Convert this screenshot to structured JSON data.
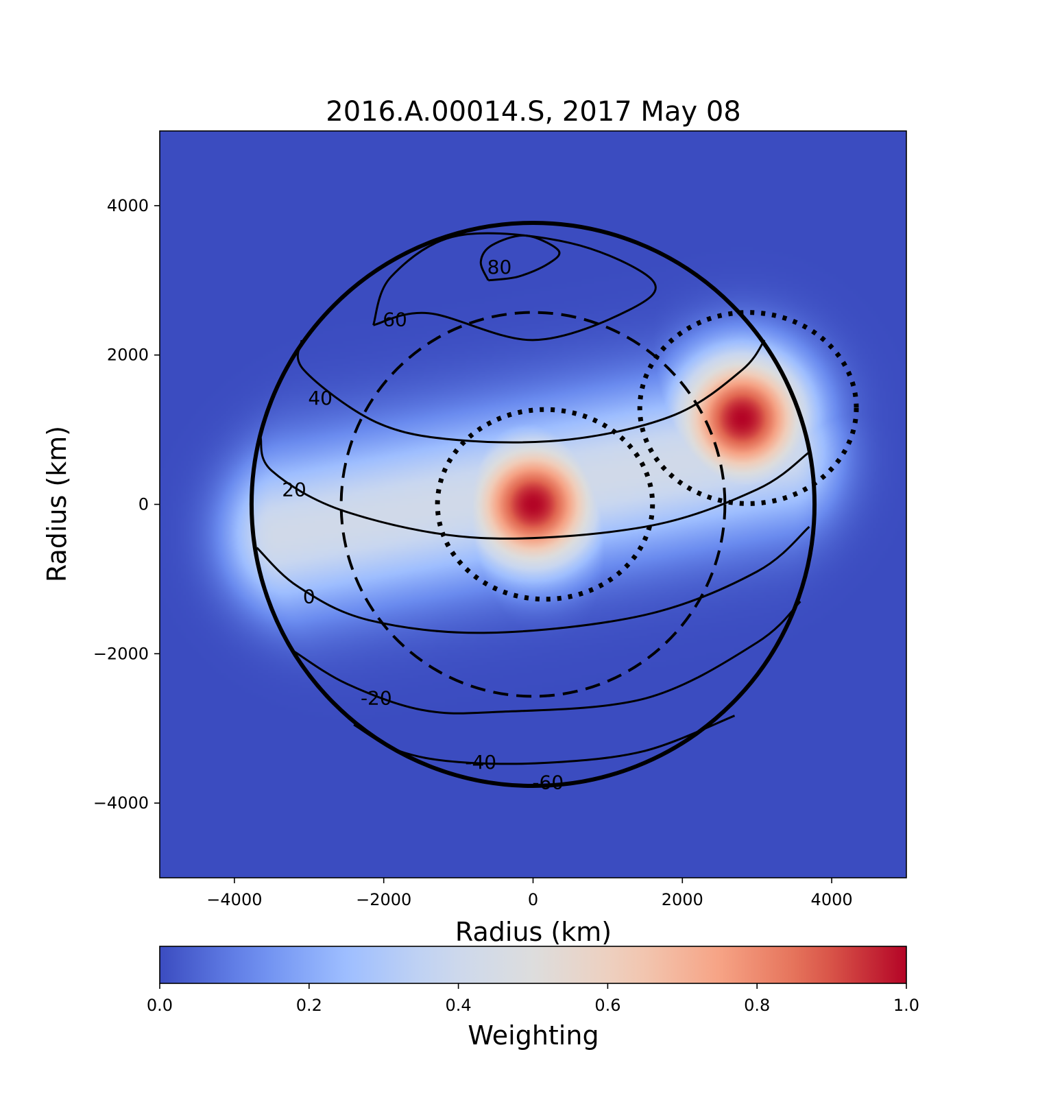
{
  "chart_data": {
    "type": "heatmap",
    "title": "2016.A.00014.S, 2017 May 08",
    "xlabel": "Radius (km)",
    "ylabel": "Radius (km)",
    "xlim": [
      -5000,
      5000
    ],
    "ylim": [
      -5000,
      5000
    ],
    "x_ticks": [
      -4000,
      -2000,
      0,
      2000,
      4000
    ],
    "y_ticks": [
      -4000,
      -2000,
      0,
      2000,
      4000
    ],
    "x_tick_labels": [
      "−4000",
      "−2000",
      "0",
      "2000",
      "4000"
    ],
    "y_tick_labels": [
      "−4000",
      "−2000",
      "0",
      "2000",
      "4000"
    ],
    "colormap": "coolwarm",
    "colormap_colors": [
      "#3b4cc0",
      "#6a8bef",
      "#9ebeff",
      "#c9d7f0",
      "#dddddd",
      "#f1cdb9",
      "#f6a385",
      "#e16751",
      "#b40426"
    ],
    "colorbar": {
      "label": "Weighting",
      "range": [
        0.0,
        1.0
      ],
      "ticks": [
        0.0,
        0.2,
        0.4,
        0.6,
        0.8,
        1.0
      ],
      "tick_labels": [
        "0.0",
        "0.2",
        "0.4",
        "0.6",
        "0.8",
        "1.0"
      ]
    },
    "beams": [
      {
        "center": [
          0,
          0
        ],
        "peak_weight": 1.0
      },
      {
        "center": [
          2800,
          1150
        ],
        "peak_weight": 1.0
      }
    ],
    "planet_limb": {
      "center": [
        0,
        0
      ],
      "radius": 3770
    },
    "inner_dashed_circle": {
      "center": [
        0,
        0
      ],
      "radius": 2570
    },
    "dotted_circles": [
      {
        "center": [
          160,
          0
        ],
        "rx": 1440,
        "ry": 1270
      },
      {
        "center": [
          2880,
          1290
        ],
        "rx": 1450,
        "ry": 1280
      }
    ],
    "latitude_contours": [
      {
        "label": "80",
        "points": [
          [
            -600,
            3000
          ],
          [
            -200,
            3050
          ],
          [
            200,
            3220
          ],
          [
            340,
            3400
          ],
          [
            -100,
            3600
          ],
          [
            -550,
            3470
          ],
          [
            -700,
            3250
          ],
          [
            -600,
            3000
          ]
        ],
        "label_position": [
          -450,
          3180
        ]
      },
      {
        "label": "60",
        "points": [
          [
            -2140,
            2400
          ],
          [
            -1900,
            3050
          ],
          [
            -1000,
            3600
          ],
          [
            500,
            3500
          ],
          [
            1600,
            3000
          ],
          [
            1280,
            2600
          ],
          [
            0,
            2200
          ],
          [
            -1400,
            2560
          ],
          [
            -2140,
            2400
          ]
        ],
        "label_position": [
          -1850,
          2480
        ]
      },
      {
        "label": "40",
        "points": [
          [
            -3100,
            2200
          ],
          [
            -3070,
            1800
          ],
          [
            -2100,
            1100
          ],
          [
            -1000,
            860
          ],
          [
            500,
            870
          ],
          [
            1900,
            1200
          ],
          [
            2800,
            1800
          ],
          [
            3100,
            2200
          ]
        ],
        "label_position": [
          -2850,
          1430
        ]
      },
      {
        "label": "20",
        "points": [
          [
            -3650,
            900
          ],
          [
            -3500,
            450
          ],
          [
            -2500,
            -100
          ],
          [
            -700,
            -450
          ],
          [
            1500,
            -300
          ],
          [
            3000,
            200
          ],
          [
            3700,
            700
          ]
        ],
        "label_position": [
          -3200,
          200
        ]
      },
      {
        "label": "0",
        "points": [
          [
            -3700,
            -580
          ],
          [
            -3150,
            -1100
          ],
          [
            -2200,
            -1550
          ],
          [
            -600,
            -1720
          ],
          [
            1500,
            -1480
          ],
          [
            3000,
            -900
          ],
          [
            3700,
            -300
          ]
        ],
        "label_position": [
          -3000,
          -1230
        ]
      },
      {
        "label": "-20",
        "points": [
          [
            -3200,
            -1970
          ],
          [
            -2500,
            -2400
          ],
          [
            -1500,
            -2750
          ],
          [
            -500,
            -2780
          ],
          [
            1500,
            -2600
          ],
          [
            3000,
            -1850
          ],
          [
            3580,
            -1300
          ]
        ],
        "label_position": [
          -2100,
          -2590
        ]
      },
      {
        "label": "-40",
        "points": [
          [
            -2400,
            -2950
          ],
          [
            -1800,
            -3300
          ],
          [
            -1000,
            -3450
          ],
          [
            200,
            -3460
          ],
          [
            1500,
            -3300
          ],
          [
            2700,
            -2830
          ]
        ],
        "label_position": [
          -700,
          -3450
        ]
      },
      {
        "label": "-60",
        "points": [],
        "label_position": [
          200,
          -3720
        ]
      }
    ]
  }
}
